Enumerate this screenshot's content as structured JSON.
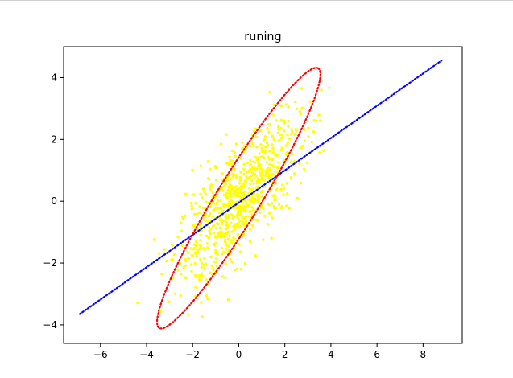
{
  "chart_data": {
    "type": "scatter",
    "title": "runing",
    "xlabel": "",
    "ylabel": "",
    "xlim": [
      -7.6,
      9.7
    ],
    "ylim": [
      -4.6,
      5.0
    ],
    "xticks": [
      -6,
      -4,
      -2,
      0,
      2,
      4,
      6,
      8
    ],
    "yticks": [
      -4,
      -2,
      0,
      2,
      4
    ],
    "grid": false,
    "scatter": {
      "color": "#ffff00",
      "n_points": 800,
      "mean": [
        0.0,
        0.0
      ],
      "std_x": 1.35,
      "std_y": 1.3,
      "correlation": 0.75
    },
    "regression_line": {
      "style": "dotted",
      "color": "#0000ff",
      "x": [
        -6.9,
        8.8
      ],
      "y": [
        -3.65,
        4.55
      ]
    },
    "ellipse": {
      "style": "dotted",
      "color": "#ff0000",
      "center": [
        0.0,
        0.1
      ],
      "endpoints": [
        [
          3.45,
          4.3
        ],
        [
          -3.45,
          -4.1
        ]
      ],
      "minor_half_width": 0.95
    }
  }
}
